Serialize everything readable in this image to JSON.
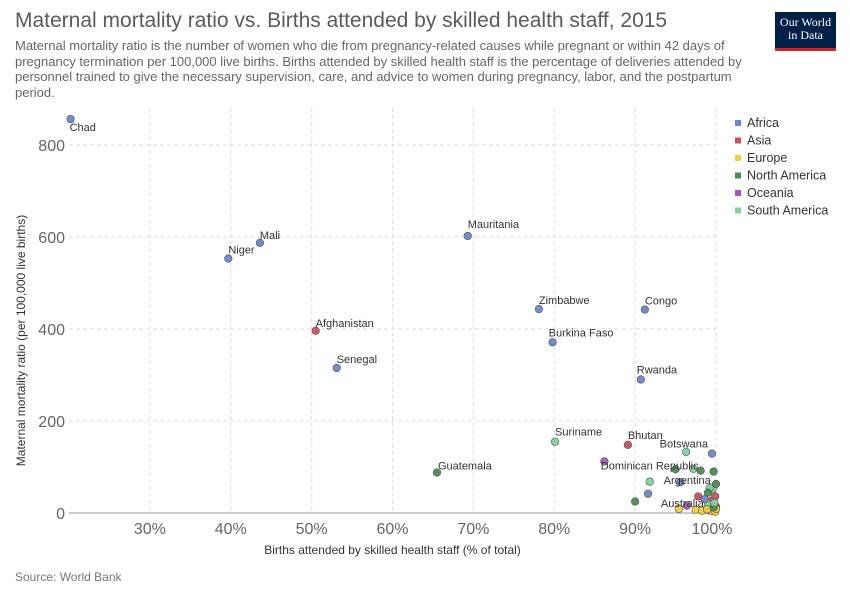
{
  "header": {
    "title": "Maternal mortality ratio vs. Births attended by skilled health staff, 2015",
    "subtitle": "Maternal mortality ratio is the number of women who die from pregnancy-related causes while pregnant or within 42 days of pregnancy termination per 100,000 live births. Births attended by skilled health staff is the percentage of deliveries attended by personnel trained to give the necessary supervision, care, and advice to women during pregnancy, labor, and the postpartum period.",
    "logo_line1": "Our World",
    "logo_line2": "in Data"
  },
  "footer": {
    "source": "Source: World Bank"
  },
  "colors": {
    "Africa": "#6b86c8",
    "Asia": "#c8525a",
    "Europe": "#f2cf3b",
    "North America": "#4d8a4d",
    "Oceania": "#a552c4",
    "South America": "#7dd39a"
  },
  "chart_data": {
    "type": "scatter",
    "xlabel": "Births attended by skilled health staff (% of total)",
    "ylabel": "Maternal mortality ratio (per 100,000 live births)",
    "xlim": [
      20,
      100
    ],
    "ylim": [
      0,
      880
    ],
    "x_ticks": [
      30,
      40,
      50,
      60,
      70,
      80,
      90,
      100
    ],
    "x_tick_labels": [
      "30%",
      "40%",
      "50%",
      "60%",
      "70%",
      "80%",
      "90%",
      "100%"
    ],
    "y_ticks": [
      0,
      200,
      400,
      600,
      800
    ],
    "y_tick_labels": [
      "0",
      "200",
      "400",
      "600",
      "800"
    ],
    "grid": true,
    "legend_position": "right",
    "legend": [
      "Africa",
      "Asia",
      "Europe",
      "North America",
      "Oceania",
      "South America"
    ],
    "points": [
      {
        "label": "Chad",
        "x": 20.2,
        "y": 856,
        "group": "Africa"
      },
      {
        "label": "Mali",
        "x": 43.6,
        "y": 587,
        "group": "Africa"
      },
      {
        "label": "Niger",
        "x": 39.7,
        "y": 553,
        "group": "Africa"
      },
      {
        "label": "Mauritania",
        "x": 69.3,
        "y": 602,
        "group": "Africa"
      },
      {
        "label": "Zimbabwe",
        "x": 78.1,
        "y": 443,
        "group": "Africa"
      },
      {
        "label": "Congo",
        "x": 91.2,
        "y": 442,
        "group": "Africa"
      },
      {
        "label": "Afghanistan",
        "x": 50.5,
        "y": 396,
        "group": "Asia"
      },
      {
        "label": "Burkina Faso",
        "x": 79.8,
        "y": 371,
        "group": "Africa"
      },
      {
        "label": "Senegal",
        "x": 53.1,
        "y": 315,
        "group": "Africa"
      },
      {
        "label": "Rwanda",
        "x": 90.7,
        "y": 290,
        "group": "Africa"
      },
      {
        "label": "Suriname",
        "x": 80.1,
        "y": 155,
        "group": "South America"
      },
      {
        "label": "Bhutan",
        "x": 89.1,
        "y": 148,
        "group": "Asia"
      },
      {
        "label": "Botswana",
        "x": 99.5,
        "y": 129,
        "group": "Africa"
      },
      {
        "label": "Dominican Republic",
        "x": 98.1,
        "y": 92,
        "group": "North America"
      },
      {
        "label": "Guatemala",
        "x": 65.5,
        "y": 88,
        "group": "North America"
      },
      {
        "label": "Argentina",
        "x": 99.6,
        "y": 52,
        "group": "South America"
      },
      {
        "label": "Australia",
        "x": 99.1,
        "y": 6,
        "group": "Oceania"
      },
      {
        "label": "",
        "x": 86.2,
        "y": 112,
        "group": "Oceania"
      },
      {
        "label": "",
        "x": 96.3,
        "y": 133,
        "group": "South America"
      },
      {
        "label": "",
        "x": 97.2,
        "y": 96,
        "group": "South America"
      },
      {
        "label": "",
        "x": 95.0,
        "y": 95,
        "group": "North America"
      },
      {
        "label": "",
        "x": 99.7,
        "y": 90,
        "group": "North America"
      },
      {
        "label": "",
        "x": 91.8,
        "y": 68,
        "group": "South America"
      },
      {
        "label": "",
        "x": 95.6,
        "y": 67,
        "group": "Africa"
      },
      {
        "label": "",
        "x": 100.0,
        "y": 63,
        "group": "North America"
      },
      {
        "label": "",
        "x": 99.2,
        "y": 54,
        "group": "South America"
      },
      {
        "label": "",
        "x": 91.6,
        "y": 42,
        "group": "Africa"
      },
      {
        "label": "",
        "x": 99.0,
        "y": 44,
        "group": "North America"
      },
      {
        "label": "",
        "x": 99.9,
        "y": 36,
        "group": "Asia"
      },
      {
        "label": "",
        "x": 97.8,
        "y": 36,
        "group": "Asia"
      },
      {
        "label": "",
        "x": 99.4,
        "y": 26,
        "group": "Asia"
      },
      {
        "label": "",
        "x": 90.0,
        "y": 25,
        "group": "North America"
      },
      {
        "label": "",
        "x": 96.4,
        "y": 16,
        "group": "Oceania"
      },
      {
        "label": "",
        "x": 99.0,
        "y": 20,
        "group": "South America"
      },
      {
        "label": "",
        "x": 100.0,
        "y": 14,
        "group": "Asia"
      },
      {
        "label": "",
        "x": 99.8,
        "y": 10,
        "group": "Europe"
      },
      {
        "label": "",
        "x": 99.9,
        "y": 6,
        "group": "Asia"
      },
      {
        "label": "",
        "x": 95.4,
        "y": 9,
        "group": "Europe"
      },
      {
        "label": "",
        "x": 97.5,
        "y": 7,
        "group": "Europe"
      },
      {
        "label": "",
        "x": 98.3,
        "y": 5,
        "group": "Europe"
      },
      {
        "label": "",
        "x": 99.5,
        "y": 4,
        "group": "Europe"
      },
      {
        "label": "",
        "x": 99.9,
        "y": 3,
        "group": "Europe"
      },
      {
        "label": "",
        "x": 98.9,
        "y": 8,
        "group": "Europe"
      },
      {
        "label": "",
        "x": 100.0,
        "y": 9,
        "group": "Europe"
      },
      {
        "label": "",
        "x": 99.7,
        "y": 12,
        "group": "North America"
      },
      {
        "label": "",
        "x": 98.6,
        "y": 30,
        "group": "Africa"
      },
      {
        "label": "",
        "x": 99.8,
        "y": 22,
        "group": "South America"
      }
    ]
  }
}
